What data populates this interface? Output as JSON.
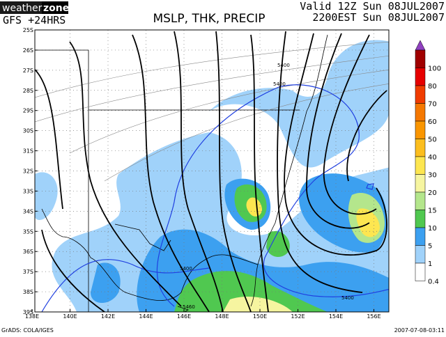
{
  "header": {
    "logo_a": "weather",
    "logo_b": "zone",
    "model": "GFS +24HRS",
    "title": "MSLP, THK, PRECIP",
    "valid": "Valid 12Z Sun 08JUL2007",
    "local": "2200EST Sun 08JUL2007"
  },
  "map": {
    "lat_labels": [
      "25S",
      "26S",
      "27S",
      "28S",
      "29S",
      "30S",
      "31S",
      "32S",
      "33S",
      "34S",
      "35S",
      "36S",
      "37S",
      "38S",
      "39S"
    ],
    "lon_labels": [
      "138E",
      "140E",
      "142E",
      "144E",
      "146E",
      "148E",
      "150E",
      "152E",
      "154E",
      "156E"
    ],
    "contour_labels": [
      "5400",
      "5400",
      "5400",
      "5400",
      "5460"
    ]
  },
  "colorbar": [
    {
      "label": "100",
      "color": "#a00000"
    },
    {
      "label": "80",
      "color": "#e60000"
    },
    {
      "label": "70",
      "color": "#f03c00"
    },
    {
      "label": "60",
      "color": "#f57800"
    },
    {
      "label": "50",
      "color": "#fa9600"
    },
    {
      "label": "40",
      "color": "#fcbe1e"
    },
    {
      "label": "30",
      "color": "#fde650"
    },
    {
      "label": "20",
      "color": "#f6f5a0"
    },
    {
      "label": "15",
      "color": "#b4e68c"
    },
    {
      "label": "10",
      "color": "#50c850"
    },
    {
      "label": "5",
      "color": "#3ca0f0"
    },
    {
      "label": "1",
      "color": "#a0d2fa"
    },
    {
      "label": "0.4",
      "color": "#ffffff"
    }
  ],
  "footer": {
    "left": "GrADS: COLA/IGES",
    "right": "2007-07-08-03:11"
  }
}
